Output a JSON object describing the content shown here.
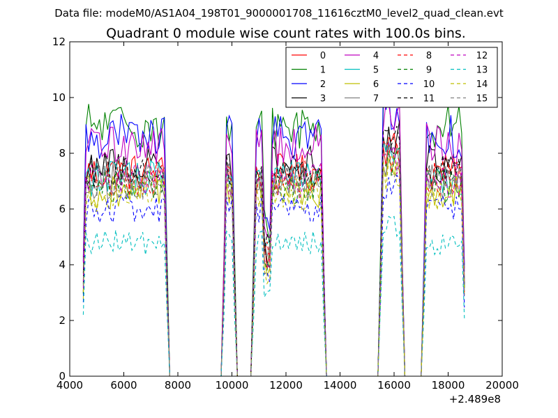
{
  "chart_data": {
    "type": "line",
    "suptitle": "Data file: modeM0/AS1A04_198T01_9000001708_11616cztM0_level2_quad_clean.evt",
    "title": "Quadrant 0 module wise count rates with 100.0s bins.",
    "xlabel": "",
    "ylabel": "",
    "x_offset_label": "+2.489e8",
    "xlim": [
      4000,
      20000
    ],
    "ylim": [
      0,
      12
    ],
    "xticks": [
      4000,
      6000,
      8000,
      10000,
      12000,
      14000,
      16000,
      18000,
      20000
    ],
    "yticks": [
      0,
      2,
      4,
      6,
      8,
      10,
      12
    ],
    "legend_position": "top-right",
    "bin_width_s": 100,
    "segments": [
      [
        4500,
        7600
      ],
      [
        9700,
        10100
      ],
      [
        10800,
        13400
      ],
      [
        15500,
        16300
      ],
      [
        17100,
        18600
      ]
    ],
    "series": [
      {
        "name": "0",
        "color": "#ff0000",
        "dash": "solid",
        "level": 7.3
      },
      {
        "name": "1",
        "color": "#008000",
        "dash": "solid",
        "level": 9.0
      },
      {
        "name": "2",
        "color": "#0000ff",
        "dash": "solid",
        "level": 8.6
      },
      {
        "name": "3",
        "color": "#000000",
        "dash": "solid",
        "level": 7.6
      },
      {
        "name": "4",
        "color": "#bf00bf",
        "dash": "solid",
        "level": 8.3
      },
      {
        "name": "5",
        "color": "#00bfbf",
        "dash": "solid",
        "level": 7.1
      },
      {
        "name": "6",
        "color": "#bfbf00",
        "dash": "solid",
        "level": 6.6
      },
      {
        "name": "7",
        "color": "#808080",
        "dash": "solid",
        "level": 7.0
      },
      {
        "name": "8",
        "color": "#ff0000",
        "dash": "dashed",
        "level": 7.1
      },
      {
        "name": "9",
        "color": "#008000",
        "dash": "dashed",
        "level": 6.8
      },
      {
        "name": "10",
        "color": "#0000ff",
        "dash": "dashed",
        "level": 6.0
      },
      {
        "name": "11",
        "color": "#000000",
        "dash": "dashed",
        "level": 7.4
      },
      {
        "name": "12",
        "color": "#bf00bf",
        "dash": "dashed",
        "level": 7.0
      },
      {
        "name": "13",
        "color": "#00bfbf",
        "dash": "dashed",
        "level": 4.8
      },
      {
        "name": "14",
        "color": "#bfbf00",
        "dash": "dashed",
        "level": 6.5
      },
      {
        "name": "15",
        "color": "#808080",
        "dash": "dashed",
        "level": 6.9
      }
    ]
  }
}
